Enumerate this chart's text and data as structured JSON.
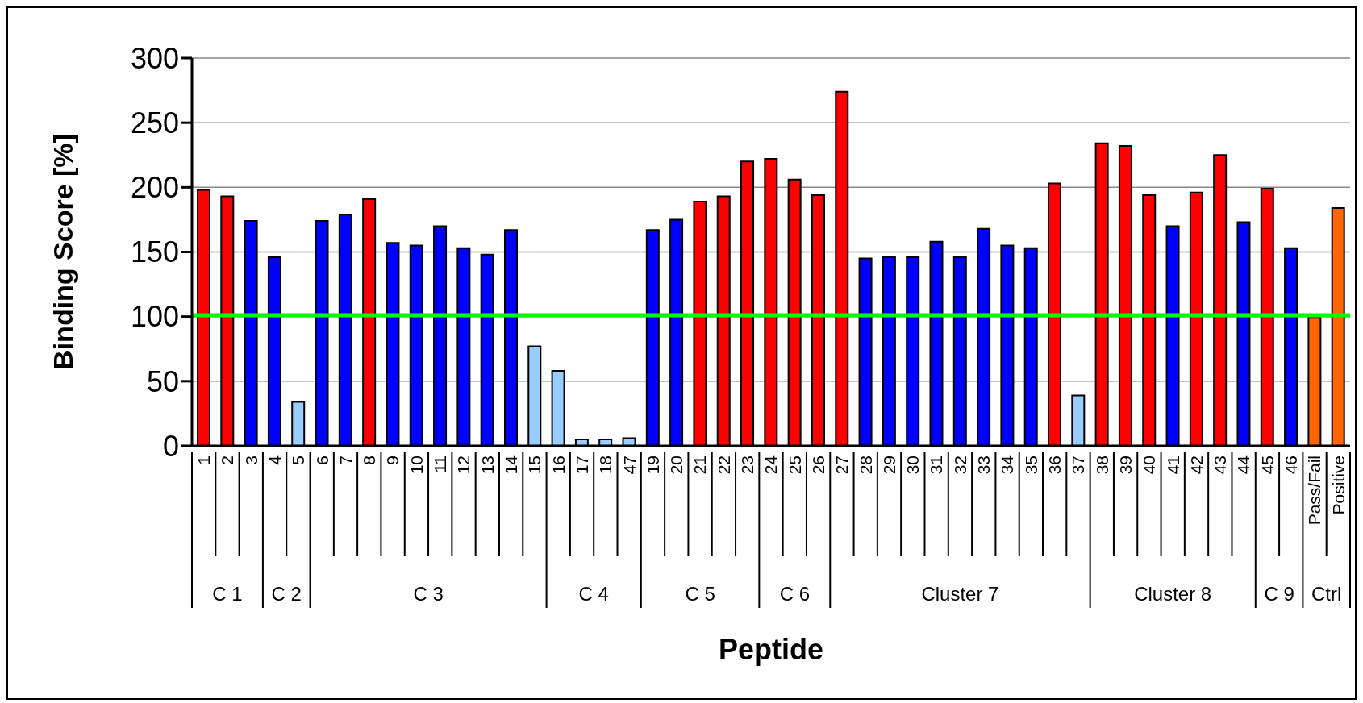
{
  "chart_data": {
    "type": "bar",
    "xlabel": "Peptide",
    "ylabel": "Binding Score [%]",
    "categories": [
      "1",
      "2",
      "3",
      "4",
      "5",
      "6",
      "7",
      "8",
      "9",
      "10",
      "11",
      "12",
      "13",
      "14",
      "15",
      "16",
      "17",
      "18",
      "47",
      "19",
      "20",
      "21",
      "22",
      "23",
      "24",
      "25",
      "26",
      "27",
      "28",
      "29",
      "30",
      "31",
      "32",
      "33",
      "34",
      "35",
      "36",
      "37",
      "38",
      "39",
      "40",
      "41",
      "42",
      "43",
      "44",
      "45",
      "46",
      "Pass/Fail",
      "Positive"
    ],
    "values": [
      198,
      193,
      174,
      146,
      34,
      174,
      179,
      191,
      157,
      155,
      170,
      153,
      148,
      167,
      77,
      58,
      5,
      5,
      6,
      167,
      175,
      189,
      193,
      220,
      222,
      206,
      194,
      274,
      145,
      146,
      146,
      158,
      146,
      168,
      155,
      153,
      203,
      39,
      234,
      232,
      194,
      170,
      196,
      225,
      173,
      199,
      153,
      99,
      184
    ],
    "colors": [
      "#ff0000",
      "#ff0000",
      "#0000ff",
      "#0000ff",
      "#99ccff",
      "#0000ff",
      "#0000ff",
      "#ff0000",
      "#0000ff",
      "#0000ff",
      "#0000ff",
      "#0000ff",
      "#0000ff",
      "#0000ff",
      "#99ccff",
      "#99ccff",
      "#99ccff",
      "#99ccff",
      "#99ccff",
      "#0000ff",
      "#0000ff",
      "#ff0000",
      "#ff0000",
      "#ff0000",
      "#ff0000",
      "#ff0000",
      "#ff0000",
      "#ff0000",
      "#0000ff",
      "#0000ff",
      "#0000ff",
      "#0000ff",
      "#0000ff",
      "#0000ff",
      "#0000ff",
      "#0000ff",
      "#ff0000",
      "#99ccff",
      "#ff0000",
      "#ff0000",
      "#ff0000",
      "#0000ff",
      "#ff0000",
      "#ff0000",
      "#0000ff",
      "#ff0000",
      "#0000ff",
      "#ff6600",
      "#ff6600"
    ],
    "ylim": [
      0,
      300
    ],
    "yticks": [
      0,
      50,
      100,
      150,
      200,
      250,
      300
    ],
    "grid": "y",
    "ref_lines": [
      {
        "axis": "y",
        "value": 101,
        "color": "#00ff00"
      }
    ],
    "annotations": [
      "C 1",
      "C 2",
      "C 3",
      "C 4",
      "C 5",
      "C 6",
      "Cluster 7",
      "Cluster 8",
      "C 9",
      "Ctrl"
    ]
  }
}
